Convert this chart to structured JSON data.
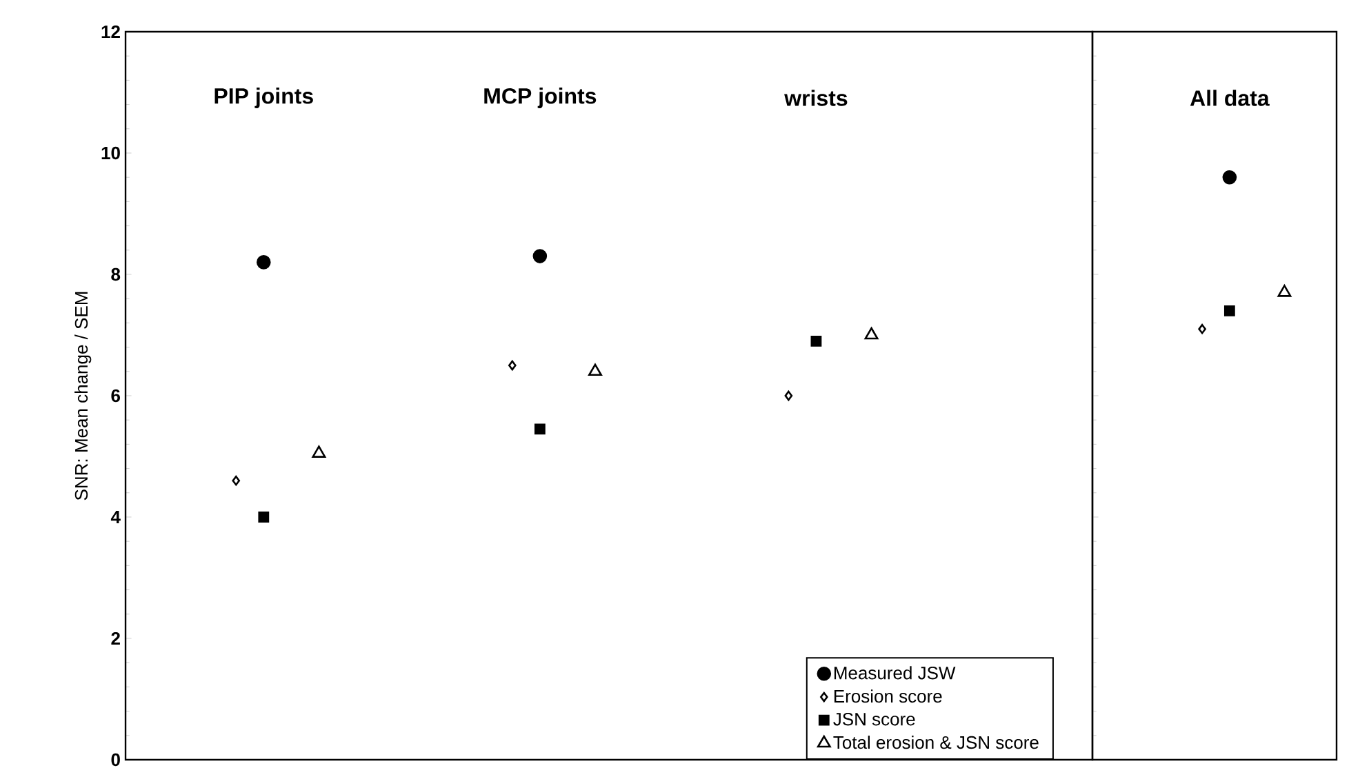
{
  "chart_data": [
    {
      "type": "scatter",
      "ylabel": "SNR: Mean change / SEM",
      "categories": [
        "PIP joints",
        "MCP joints",
        "wrists"
      ],
      "ylim": [
        0,
        12
      ],
      "yticks": [
        0,
        2,
        4,
        6,
        8,
        10,
        12
      ],
      "legend": "bottom right",
      "series": [
        {
          "name": "Measured JSW",
          "color": "#000000",
          "marker": "circle",
          "values": [
            8.2,
            8.3,
            null
          ]
        },
        {
          "name": "Erosion score",
          "color": "#000000",
          "marker": "diamond",
          "values": [
            4.6,
            6.5,
            6.0
          ]
        },
        {
          "name": "JSN score",
          "color": "#000000",
          "marker": "square",
          "values": [
            4.0,
            5.45,
            6.9
          ]
        },
        {
          "name": "Total erosion & JSN score",
          "color": "#000000",
          "marker": "triangle",
          "values": [
            5.05,
            6.4,
            7.0
          ]
        }
      ]
    },
    {
      "type": "scatter",
      "categories": [
        "All data"
      ],
      "ylim": [
        0,
        12
      ],
      "yticks": [
        0,
        2,
        4,
        6,
        8,
        10,
        12
      ],
      "tick_labels": "x",
      "series": [
        {
          "color": "#000000",
          "marker": "circle",
          "values": [
            9.6
          ]
        },
        {
          "color": "#000000",
          "marker": "diamond",
          "values": [
            7.1
          ]
        },
        {
          "color": "#000000",
          "marker": "square",
          "values": [
            7.4
          ]
        },
        {
          "color": "#000000",
          "marker": "triangle",
          "values": [
            7.7
          ]
        }
      ]
    }
  ]
}
